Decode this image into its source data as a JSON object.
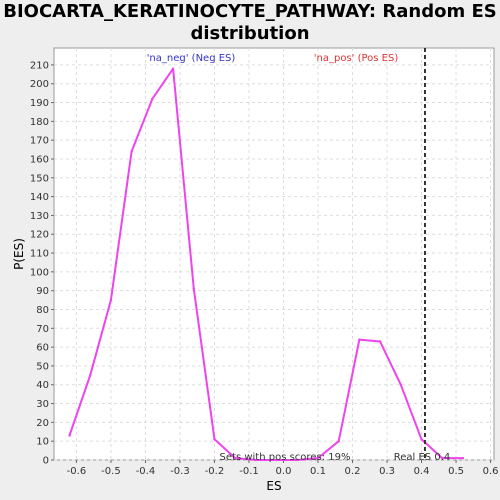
{
  "chart_data": {
    "type": "line",
    "title_line1": "BIOCARTA_KERATINOCYTE_PATHWAY: Random ES",
    "title_line2": "distribution",
    "xlabel": "ES",
    "ylabel": "P(ES)",
    "xlim": [
      -0.665,
      0.61
    ],
    "ylim": [
      0,
      219
    ],
    "x_ticks": [
      -0.6,
      -0.5,
      -0.4,
      -0.3,
      -0.2,
      -0.1,
      0.0,
      0.1,
      0.2,
      0.3,
      0.4,
      0.5,
      0.6
    ],
    "x_tick_labels": [
      "-0.6",
      "-0.5",
      "-0.4",
      "-0.3",
      "-0.2",
      "-0.1",
      "0.0",
      "0.1",
      "0.2",
      "0.3",
      "0.4",
      "0.5",
      "0.6"
    ],
    "y_ticks": [
      0,
      10,
      20,
      30,
      40,
      50,
      60,
      70,
      80,
      90,
      100,
      110,
      120,
      130,
      140,
      150,
      160,
      170,
      180,
      190,
      200,
      210
    ],
    "grid": true,
    "series": [
      {
        "color": "#ee44ee",
        "x": [
          -0.62,
          -0.56,
          -0.5,
          -0.44,
          -0.38,
          -0.32,
          -0.26,
          -0.2,
          -0.14,
          -0.08,
          -0.02,
          0.04,
          0.1,
          0.16,
          0.22,
          0.28,
          0.34,
          0.4,
          0.46,
          0.52
        ],
        "y": [
          13,
          45,
          85,
          164,
          192,
          208,
          91,
          11,
          1,
          0,
          0,
          0,
          1,
          10,
          64,
          63,
          40,
          11,
          1,
          1
        ]
      }
    ],
    "real_es": 0.41,
    "real_es_label": "Real ES 0.4",
    "neg_label": "'na_neg' (Neg ES)",
    "pos_label": "'na_pos' (Pos ES)",
    "sets_label": "Sets with pos scores: 19%",
    "colors": {
      "line": "#ee44ee",
      "neg_label": "#3333cc",
      "pos_label": "#dd3333",
      "grid": "#dddddd",
      "real_es_line": "#333333"
    }
  }
}
